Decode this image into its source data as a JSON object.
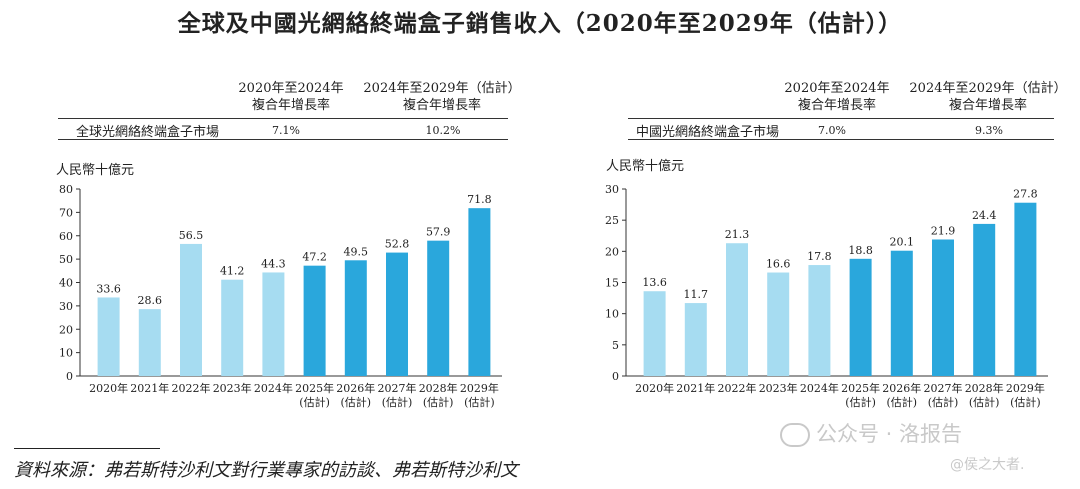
{
  "title": "全球及中國光網絡終端盒子銷售收入（2020年至2029年（估計））",
  "charts": [
    {
      "id": "global",
      "cagr_header_1_line1": "2020年至2024年",
      "cagr_header_1_line2": "複合年增長率",
      "cagr_header_2_line1": "2024年至2029年（估計）",
      "cagr_header_2_line2": "複合年增長率",
      "market_label": "全球光網絡終端盒子市場",
      "cagr_1": "7.1%",
      "cagr_2": "10.2%",
      "unit": "人民幣十億元"
    },
    {
      "id": "china",
      "cagr_header_1_line1": "2020年至2024年",
      "cagr_header_1_line2": "複合年增長率",
      "cagr_header_2_line1": "2024年至2029年（估計）",
      "cagr_header_2_line2": "複合年增長率",
      "market_label": "中國光網絡終端盒子市場",
      "cagr_1": "7.0%",
      "cagr_2": "9.3%",
      "unit": "人民幣十億元"
    }
  ],
  "chart_data": [
    {
      "type": "bar",
      "title": "全球光網絡終端盒子市場",
      "ylabel": "人民幣十億元",
      "ylim": [
        0,
        80
      ],
      "yticks": [
        0,
        10,
        20,
        30,
        40,
        50,
        60,
        70,
        80
      ],
      "categories": [
        "2020年",
        "2021年",
        "2022年",
        "2023年",
        "2024年",
        "2025年",
        "2026年",
        "2027年",
        "2028年",
        "2029年"
      ],
      "category_sublabels": [
        "",
        "",
        "",
        "",
        "",
        "(估計)",
        "(估計)",
        "(估計)",
        "(估計)",
        "(估計)"
      ],
      "values": [
        33.6,
        28.6,
        56.5,
        41.2,
        44.3,
        47.2,
        49.5,
        52.8,
        57.9,
        71.8
      ],
      "value_labels": [
        "33.6",
        "28.6",
        "56.5",
        "41.2",
        "44.3",
        "47.2",
        "49.5",
        "52.8",
        "57.9",
        "71.8"
      ],
      "colors": {
        "historical": "#a6dcf1",
        "estimated": "#2aa7dc"
      }
    },
    {
      "type": "bar",
      "title": "中國光網絡終端盒子市場",
      "ylabel": "人民幣十億元",
      "ylim": [
        0,
        30
      ],
      "yticks": [
        0,
        5,
        10,
        15,
        20,
        25,
        30
      ],
      "categories": [
        "2020年",
        "2021年",
        "2022年",
        "2023年",
        "2024年",
        "2025年",
        "2026年",
        "2027年",
        "2028年",
        "2029年"
      ],
      "category_sublabels": [
        "",
        "",
        "",
        "",
        "",
        "(估計)",
        "(估計)",
        "(估計)",
        "(估計)",
        "(估計)"
      ],
      "values": [
        13.6,
        11.7,
        21.3,
        16.6,
        17.8,
        18.8,
        20.1,
        21.9,
        24.4,
        27.8
      ],
      "value_labels": [
        "13.6",
        "11.7",
        "21.3",
        "16.6",
        "17.8",
        "18.8",
        "20.1",
        "21.9",
        "24.4",
        "27.8"
      ],
      "colors": {
        "historical": "#a6dcf1",
        "estimated": "#2aa7dc"
      }
    }
  ],
  "source": "資料來源：弗若斯特沙利文對行業專家的訪談、弗若斯特沙利文",
  "watermark": {
    "text": "公众号 · 洛报告",
    "subtext": "@侯之大者."
  }
}
